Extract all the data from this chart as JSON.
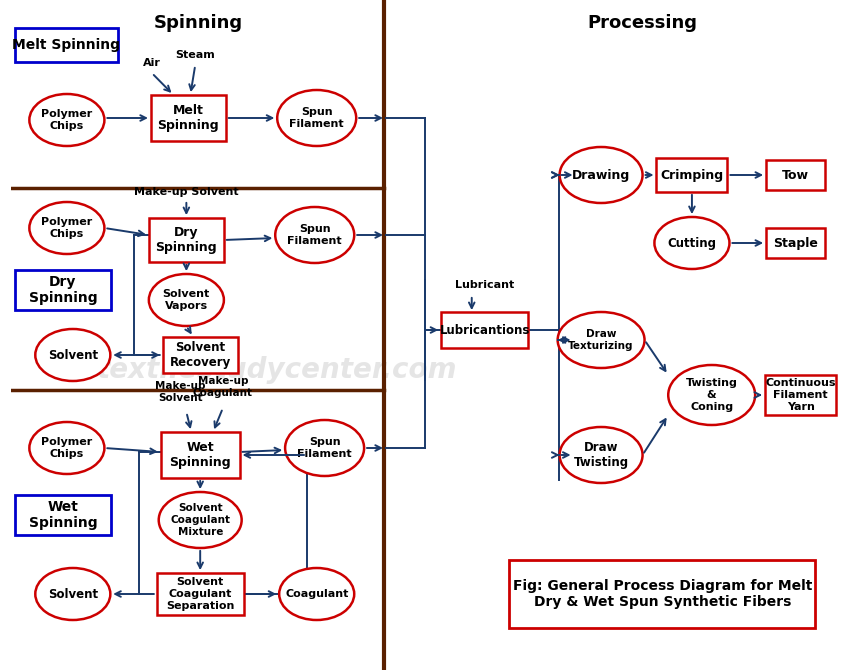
{
  "title_left": "Spinning",
  "title_right": "Processing",
  "bg_color": "#ffffff",
  "box_color": "#cc0000",
  "box_fill": "#ffffff",
  "circle_color": "#cc0000",
  "circle_fill": "#ffffff",
  "arrow_color": "#1a3a6b",
  "divider_color": "#5a2000",
  "blue_box_color": "#0000cc",
  "blue_box_fill": "#ffffff",
  "watermark": "textilestudycenter.com",
  "fig_caption": "Fig: General Process Diagram for Melt\nDry & Wet Spun Synthetic Fibers"
}
